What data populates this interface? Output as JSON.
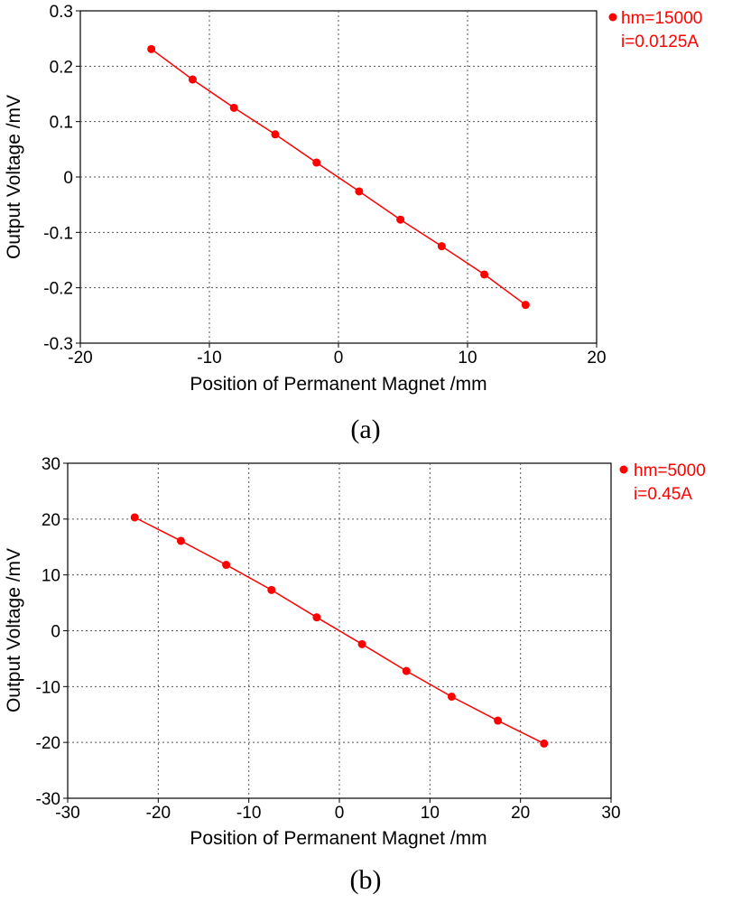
{
  "chart_data": [
    {
      "type": "line",
      "panel": "(a)",
      "xlabel": "Position of Permanent Magnet /mm",
      "ylabel": "Output Voltage /mV",
      "xlim": [
        -20,
        20
      ],
      "ylim": [
        -0.3,
        0.3
      ],
      "xticks": [
        -20,
        -10,
        0,
        10,
        20
      ],
      "yticks": [
        0.3,
        0.2,
        0.1,
        0,
        -0.1,
        -0.2,
        -0.3
      ],
      "xtick_labels": [
        "-20",
        "-10",
        "0",
        "10",
        "20"
      ],
      "ytick_labels": [
        "0.3",
        "0.2",
        "0.1",
        "0",
        "-0.1",
        "-0.2",
        "-0.3"
      ],
      "grid": true,
      "legend_position": "top-right, outside plot",
      "color": "#ff0000",
      "legend": [
        "hm=15000",
        "i=0.0125A"
      ],
      "series": [
        {
          "x": [
            -14.5,
            -11.3,
            -8.1,
            -4.9,
            -1.7,
            1.6,
            4.8,
            8.0,
            11.3,
            14.5
          ],
          "y": [
            0.231,
            0.176,
            0.125,
            0.077,
            0.026,
            -0.026,
            -0.077,
            -0.125,
            -0.176,
            -0.231
          ]
        }
      ]
    },
    {
      "type": "line",
      "panel": "(b)",
      "xlabel": "Position of Permanent Magnet /mm",
      "ylabel": "Output Voltage /mV",
      "xlim": [
        -30,
        30
      ],
      "ylim": [
        -30,
        30
      ],
      "xticks": [
        -30,
        -20,
        -10,
        0,
        10,
        20,
        30
      ],
      "yticks": [
        30,
        20,
        10,
        0,
        -10,
        -20,
        -30
      ],
      "xtick_labels": [
        "-30",
        "-20",
        "-10",
        "0",
        "10",
        "20",
        "30"
      ],
      "ytick_labels": [
        "30",
        "20",
        "10",
        "0",
        "-10",
        "-20",
        "-30"
      ],
      "grid": true,
      "legend_position": "top-right, outside plot",
      "color": "#ff0000",
      "legend": [
        "hm=5000",
        "i=0.45A"
      ],
      "series": [
        {
          "x": [
            -22.6,
            -17.5,
            -12.5,
            -7.5,
            -2.5,
            2.5,
            7.4,
            12.4,
            17.5,
            22.6
          ],
          "y": [
            20.3,
            16.1,
            11.8,
            7.3,
            2.4,
            -2.4,
            -7.2,
            -11.8,
            -16.1,
            -20.2
          ]
        }
      ]
    }
  ]
}
